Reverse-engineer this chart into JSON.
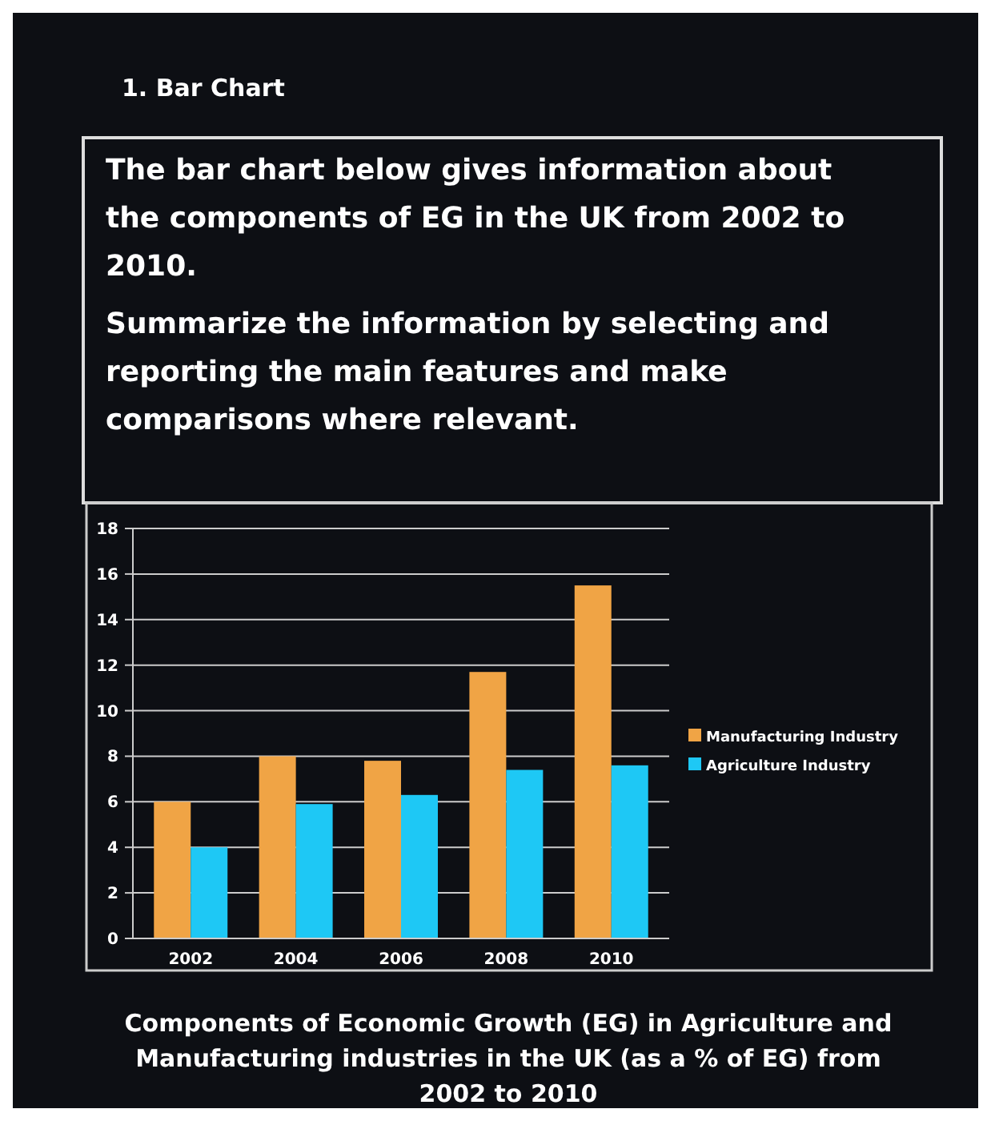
{
  "chart_data": {
    "type": "bar",
    "title": "Components of Economic Growth (EG) in Agriculture and Manufacturing industries in the UK (as a % of EG) from 2002 to 2010",
    "annotations": [
      "1. Bar Chart",
      "The bar chart below gives information about the components of EG in the UK from 2002 to 2010.",
      "Summarize the information by selecting and reporting the main features and make comparisons where relevant."
    ],
    "categories": [
      "2002",
      "2004",
      "2006",
      "2008",
      "2010"
    ],
    "series": [
      {
        "name": "Manufacturing Industry",
        "color": "#f0a445",
        "values": [
          6,
          8,
          7.8,
          11.7,
          15.5
        ]
      },
      {
        "name": "Agriculture Industry",
        "color": "#1ec8f5",
        "values": [
          4,
          5.9,
          6.3,
          7.4,
          7.6
        ]
      }
    ],
    "ylim": [
      0,
      18
    ],
    "yticks": [
      0,
      2,
      4,
      6,
      8,
      10,
      12,
      14,
      16,
      18
    ],
    "grid": "y",
    "legend": "right"
  }
}
